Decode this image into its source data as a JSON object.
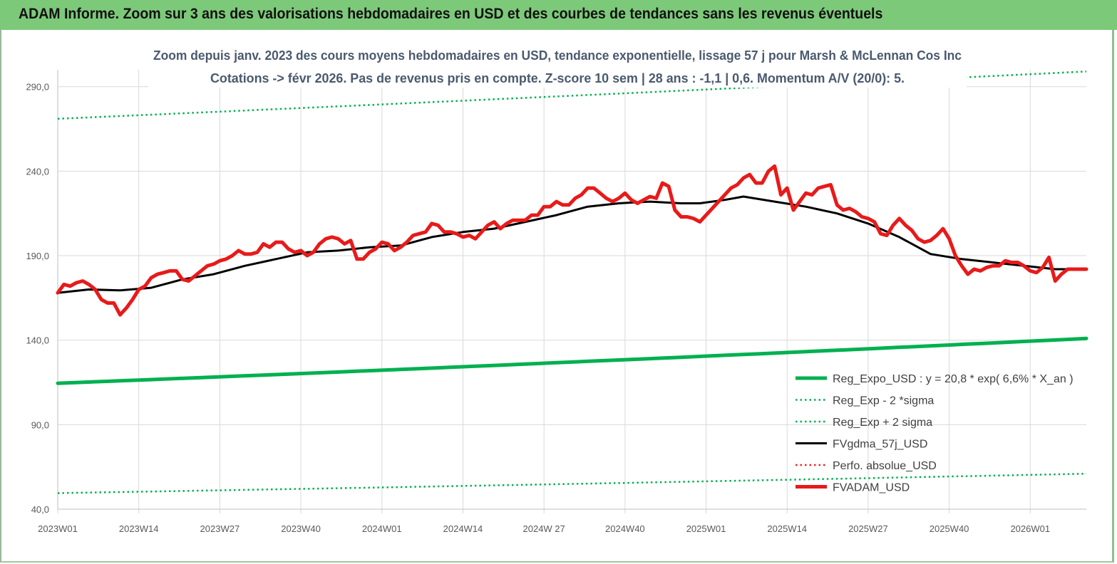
{
  "banner": {
    "title": "ADAM Informe. Zoom sur 3 ans des valorisations hebdomadaires en USD et des courbes de tendances sans les revenus éventuels",
    "color": "#7dc97a"
  },
  "chart_data": {
    "type": "line",
    "title_line1": "Zoom depuis janv. 2023 des cours moyens hebdomadaires en USD, tendance exponentielle, lissage 57 j pour Marsh & McLennan Cos Inc",
    "title_line2": "Cotations -> févr 2026.  Pas de revenus pris en compte. Z-score 10 sem  | 28 ans : -1,1  | 0,6. Momentum A/V (20/0): 5.",
    "ylim": [
      40,
      300
    ],
    "yticks": [
      40,
      90,
      140,
      190,
      240,
      290
    ],
    "ytick_labels": [
      "40,0",
      "90,0",
      "140,0",
      "190,0",
      "240,0",
      "290,0"
    ],
    "x_range_weeks": [
      0,
      165
    ],
    "xticks": [
      0,
      13,
      26,
      39,
      52,
      65,
      78,
      91,
      104,
      117,
      130,
      143,
      156
    ],
    "xtick_labels": [
      "2023W01",
      "2023W14",
      "2023W27",
      "2023W40",
      "2024W01",
      "2024W14",
      "2024W 27",
      "2024W40",
      "2025W01",
      "2025W14",
      "2025W27",
      "2025W40",
      "2026W01"
    ],
    "grid": true,
    "legend_position": "bottom-right",
    "series": [
      {
        "name": "Reg_Expo_USD : y = 20,8 * exp( 6,6% *  X_an )",
        "color": "#00b050",
        "style": "solid-thick",
        "x": [
          0,
          165
        ],
        "y": [
          114.5,
          141
        ]
      },
      {
        "name": "Reg_Exp - 2 *sigma",
        "color": "#00b050",
        "style": "dotted",
        "x": [
          0,
          165
        ],
        "y": [
          49.5,
          61
        ]
      },
      {
        "name": "Reg_Exp + 2 sigma",
        "color": "#00b050",
        "style": "dotted",
        "x": [
          0,
          165
        ],
        "y": [
          271,
          299
        ]
      },
      {
        "name": "FVgdma_57j_USD",
        "color": "#000000",
        "style": "solid",
        "x": [
          0,
          5,
          10,
          15,
          20,
          25,
          30,
          35,
          40,
          45,
          50,
          55,
          60,
          65,
          70,
          75,
          80,
          85,
          90,
          95,
          100,
          103,
          107,
          110,
          115,
          120,
          125,
          130,
          135,
          140,
          145,
          150,
          155,
          160,
          165
        ],
        "y": [
          168,
          170,
          169.5,
          171,
          176,
          179,
          184,
          188,
          192,
          193,
          195,
          196,
          201,
          204,
          206,
          210,
          214,
          219,
          221,
          222,
          221,
          221,
          223,
          225,
          222,
          219,
          215,
          209,
          201,
          191,
          188,
          186,
          184,
          182,
          182
        ]
      },
      {
        "name": "Perfo. absolue_USD",
        "color": "#e8251f",
        "style": "dotted",
        "x": [],
        "y": []
      },
      {
        "name": "FVADAM_USD",
        "color": "#e81a1a",
        "style": "solid-thick",
        "x": [
          0,
          1,
          2,
          3,
          4,
          5,
          6,
          7,
          8,
          9,
          10,
          11,
          12,
          13,
          14,
          15,
          16,
          17,
          18,
          19,
          20,
          21,
          22,
          23,
          24,
          25,
          26,
          27,
          28,
          29,
          30,
          31,
          32,
          33,
          34,
          35,
          36,
          37,
          38,
          39,
          40,
          41,
          42,
          43,
          44,
          45,
          46,
          47,
          48,
          49,
          50,
          51,
          52,
          53,
          54,
          55,
          56,
          57,
          58,
          59,
          60,
          61,
          62,
          63,
          64,
          65,
          66,
          67,
          68,
          69,
          70,
          71,
          72,
          73,
          74,
          75,
          76,
          77,
          78,
          79,
          80,
          81,
          82,
          83,
          84,
          85,
          86,
          87,
          88,
          89,
          90,
          91,
          92,
          93,
          94,
          95,
          96,
          97,
          98,
          99,
          100,
          101,
          102,
          103,
          104,
          105,
          106,
          107,
          108,
          109,
          110,
          111,
          112,
          113,
          114,
          115,
          116,
          117,
          118,
          119,
          120,
          121,
          122,
          123,
          124,
          125,
          126,
          127,
          128,
          129,
          130,
          131,
          132,
          133,
          134,
          135,
          136,
          137,
          138,
          139,
          140,
          141,
          142,
          143,
          144,
          145,
          146,
          147,
          148,
          149,
          150,
          151,
          152,
          153,
          154,
          155,
          156,
          157,
          158,
          159,
          160,
          161,
          162,
          163,
          164,
          165
        ],
        "y": [
          168,
          173,
          172,
          174,
          175,
          173,
          170,
          164,
          162,
          162,
          155,
          159,
          164,
          170,
          172,
          177,
          179,
          180,
          181,
          181,
          176,
          175,
          178,
          181,
          184,
          185,
          187,
          188,
          190,
          193,
          191,
          191,
          192,
          197,
          195,
          198,
          198,
          194,
          192,
          193,
          190,
          192,
          197,
          200,
          201,
          200,
          197,
          199,
          188,
          188,
          192,
          194,
          198,
          197,
          193,
          195,
          198,
          202,
          203,
          204,
          209,
          208,
          204,
          204,
          203,
          201,
          202,
          200,
          204,
          208,
          210,
          206,
          209,
          211,
          211,
          211,
          214,
          214,
          219,
          219,
          222,
          220,
          220,
          224,
          226,
          230,
          230,
          227,
          224,
          222,
          224,
          227,
          223,
          221,
          223,
          225,
          224,
          233,
          231,
          217,
          213,
          213,
          212,
          210,
          214,
          218,
          222,
          226,
          230,
          232,
          236,
          238,
          233,
          233,
          240,
          243,
          226,
          230,
          217,
          222,
          227,
          226,
          230,
          231,
          232,
          220,
          217,
          218,
          216,
          213,
          212,
          210,
          203,
          202,
          208,
          212,
          208,
          205,
          200,
          198,
          199,
          202,
          206,
          200,
          190,
          184,
          179,
          182,
          181,
          183,
          184,
          184,
          187,
          186,
          186,
          184,
          181,
          180,
          183,
          189,
          175,
          179,
          182,
          182,
          182,
          182
        ]
      }
    ]
  }
}
